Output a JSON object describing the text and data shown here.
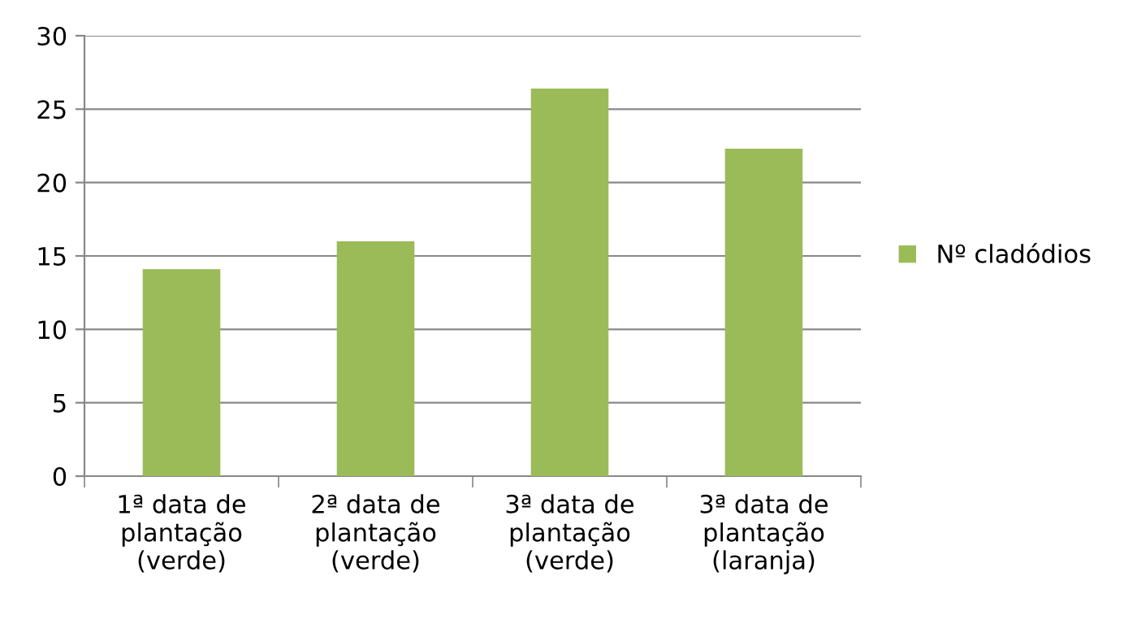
{
  "chart_data": {
    "type": "bar",
    "categories": [
      "1ª data de\nplantação\n(verde)",
      "2ª data de\nplantação\n(verde)",
      "3ª data de\nplantação\n(verde)",
      "3ª data de\nplantação\n(laranja)"
    ],
    "series": [
      {
        "name": "Nº cladódios",
        "color": "#9bbb59",
        "values": [
          14.1,
          16.0,
          26.4,
          22.3
        ]
      }
    ],
    "ylim": [
      0,
      30
    ],
    "yticks": [
      0,
      5,
      10,
      15,
      20,
      25,
      30
    ],
    "grid": "y",
    "legend": "right"
  }
}
